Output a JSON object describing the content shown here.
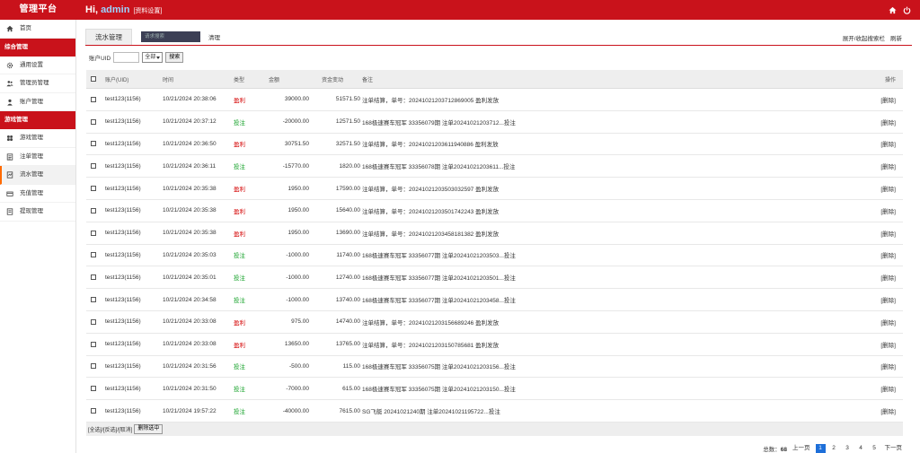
{
  "header": {
    "brand": "管理平台",
    "greeting": "Hi,",
    "username": "admin",
    "profile_link": "[资料设置]",
    "icons": [
      "home-icon",
      "power-icon"
    ]
  },
  "sidebar": {
    "items_top": [
      {
        "label": "首页",
        "icon": "home-icon"
      }
    ],
    "group1": "综合管理",
    "group1_items": [
      {
        "label": "通用设置",
        "icon": "gear-icon"
      },
      {
        "label": "管理员管理",
        "icon": "users-icon"
      },
      {
        "label": "账户管理",
        "icon": "user-icon"
      }
    ],
    "group2": "游戏管理",
    "group2_items": [
      {
        "label": "游戏管理",
        "icon": "game-icon"
      },
      {
        "label": "注单管理",
        "icon": "list-icon"
      },
      {
        "label": "流水管理",
        "icon": "flow-icon"
      },
      {
        "label": "充值管理",
        "icon": "recharge-icon"
      },
      {
        "label": "提现管理",
        "icon": "withdraw-icon"
      }
    ]
  },
  "main": {
    "tab_label": "流水管理",
    "search_placeholder": "请求搜索",
    "clear_label": "清理",
    "toggle_search": "展开/收起搜索栏",
    "refresh": "刷新",
    "filter": {
      "uid_label": "账户UID",
      "select_value": "全部",
      "search_btn": "搜索"
    },
    "table": {
      "headers": {
        "uid": "账户(UID)",
        "time": "时间",
        "type": "类型",
        "amount": "金额",
        "balance": "资金变动",
        "note": "备注",
        "op": "操作"
      },
      "rows": [
        {
          "uid": "test123(1156)",
          "time": "10/21/2024 20:38:06",
          "type": "盈利",
          "kind": "profit",
          "amount": "39000.00",
          "balance": "51571.50",
          "note": "注单结算，单号：20241021203712869005 盈利发放",
          "op": "[删除]"
        },
        {
          "uid": "test123(1156)",
          "time": "10/21/2024 20:37:12",
          "type": "投注",
          "kind": "bet",
          "amount": "-20000.00",
          "balance": "12571.50",
          "note": "168极速赛车冠军 33356079期 注单20241021203712...投注",
          "op": "[删除]"
        },
        {
          "uid": "test123(1156)",
          "time": "10/21/2024 20:36:50",
          "type": "盈利",
          "kind": "profit",
          "amount": "30751.50",
          "balance": "32571.50",
          "note": "注单结算，单号：20241021203611940886 盈利发放",
          "op": "[删除]"
        },
        {
          "uid": "test123(1156)",
          "time": "10/21/2024 20:36:11",
          "type": "投注",
          "kind": "bet",
          "amount": "-15770.00",
          "balance": "1820.00",
          "note": "168极速赛车冠军 33356078期 注单20241021203611...投注",
          "op": "[删除]"
        },
        {
          "uid": "test123(1156)",
          "time": "10/21/2024 20:35:38",
          "type": "盈利",
          "kind": "profit",
          "amount": "1950.00",
          "balance": "17590.00",
          "note": "注单结算，单号：20241021203503032597 盈利发放",
          "op": "[删除]"
        },
        {
          "uid": "test123(1156)",
          "time": "10/21/2024 20:35:38",
          "type": "盈利",
          "kind": "profit",
          "amount": "1950.00",
          "balance": "15640.00",
          "note": "注单结算，单号：20241021203501742243 盈利发放",
          "op": "[删除]"
        },
        {
          "uid": "test123(1156)",
          "time": "10/21/2024 20:35:38",
          "type": "盈利",
          "kind": "profit",
          "amount": "1950.00",
          "balance": "13690.00",
          "note": "注单结算，单号：20241021203458181382 盈利发放",
          "op": "[删除]"
        },
        {
          "uid": "test123(1156)",
          "time": "10/21/2024 20:35:03",
          "type": "投注",
          "kind": "bet",
          "amount": "-1000.00",
          "balance": "11740.00",
          "note": "168极速赛车冠军 33356077期 注单20241021203503...投注",
          "op": "[删除]"
        },
        {
          "uid": "test123(1156)",
          "time": "10/21/2024 20:35:01",
          "type": "投注",
          "kind": "bet",
          "amount": "-1000.00",
          "balance": "12740.00",
          "note": "168极速赛车冠军 33356077期 注单20241021203501...投注",
          "op": "[删除]"
        },
        {
          "uid": "test123(1156)",
          "time": "10/21/2024 20:34:58",
          "type": "投注",
          "kind": "bet",
          "amount": "-1000.00",
          "balance": "13740.00",
          "note": "168极速赛车冠军 33356077期 注单20241021203458...投注",
          "op": "[删除]"
        },
        {
          "uid": "test123(1156)",
          "time": "10/21/2024 20:33:08",
          "type": "盈利",
          "kind": "profit",
          "amount": "975.00",
          "balance": "14740.00",
          "note": "注单结算，单号：20241021203156689246 盈利发放",
          "op": "[删除]"
        },
        {
          "uid": "test123(1156)",
          "time": "10/21/2024 20:33:08",
          "type": "盈利",
          "kind": "profit",
          "amount": "13650.00",
          "balance": "13765.00",
          "note": "注单结算，单号：20241021203150785681 盈利发放",
          "op": "[删除]"
        },
        {
          "uid": "test123(1156)",
          "time": "10/21/2024 20:31:56",
          "type": "投注",
          "kind": "bet",
          "amount": "-500.00",
          "balance": "115.00",
          "note": "168极速赛车冠军 33356075期 注单20241021203156...投注",
          "op": "[删除]"
        },
        {
          "uid": "test123(1156)",
          "time": "10/21/2024 20:31:50",
          "type": "投注",
          "kind": "bet",
          "amount": "-7000.00",
          "balance": "615.00",
          "note": "168极速赛车冠军 33356075期 注单20241021203150...投注",
          "op": "[删除]"
        },
        {
          "uid": "test123(1156)",
          "time": "10/21/2024 19:57:22",
          "type": "投注",
          "kind": "bet",
          "amount": "-40000.00",
          "balance": "7615.00",
          "note": "SG飞艇 20241021240期 注单20241021195722...投注",
          "op": "[删除]"
        }
      ],
      "footer_select": "[全选]/[反选]/[取消]",
      "footer_delete": "删除选中"
    },
    "pager": {
      "total_label": "总数：",
      "total": "68",
      "prev": "上一页",
      "pages": [
        "1",
        "2",
        "3",
        "4",
        "5"
      ],
      "current": "1",
      "next": "下一页"
    }
  }
}
